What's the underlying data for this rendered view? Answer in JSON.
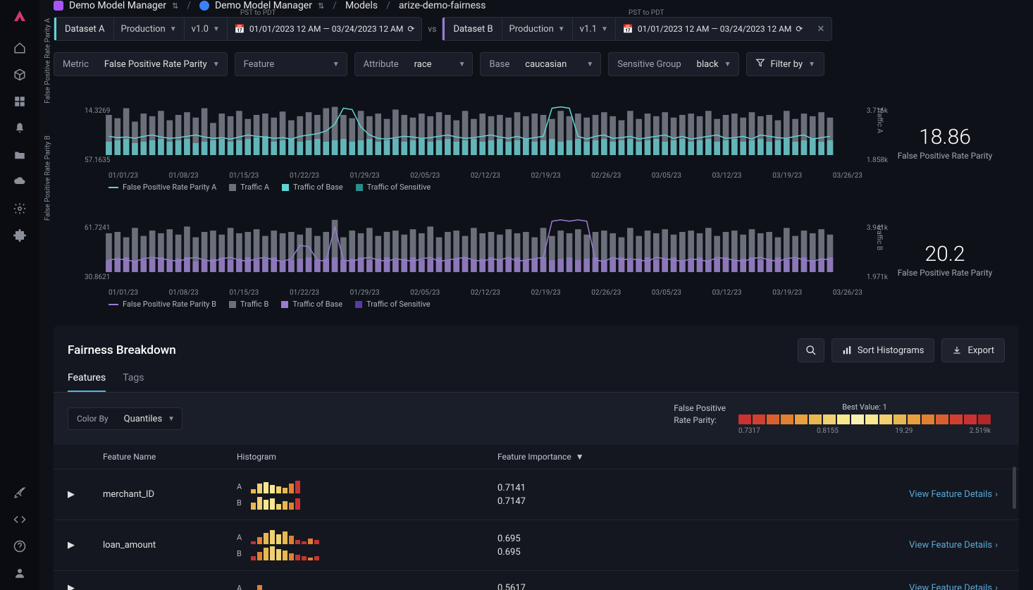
{
  "breadcrumb": {
    "org": "Demo Model Manager",
    "org_color": "#a855f7",
    "space": "Demo Model Manager",
    "space_color": "#3b82f6",
    "section": "Models",
    "model": "arize-demo-fairness"
  },
  "dataset_a": {
    "label": "Dataset A",
    "accent": "#5fd4d4",
    "env": "Production",
    "version": "v1.0",
    "tz": "PST to PDT",
    "date_range": "01/01/2023 12 AM — 03/24/2023 12 AM"
  },
  "dataset_b": {
    "label": "Dataset B",
    "accent": "#9b7bd4",
    "env": "Production",
    "version": "v1.1",
    "tz": "PST to PDT",
    "date_range": "01/01/2023 12 AM — 03/24/2023 12 AM"
  },
  "vs": "vs",
  "filters": {
    "metric_lbl": "Metric",
    "metric_val": "False Positive Rate Parity",
    "feature_lbl": "Feature",
    "feature_val": "",
    "attribute_lbl": "Attribute",
    "attribute_val": "race",
    "base_lbl": "Base",
    "base_val": "caucasian",
    "sensitive_lbl": "Sensitive Group",
    "sensitive_val": "black",
    "filterby": "Filter by"
  },
  "chart_a": {
    "y_label": "False Positive Rate Parity A",
    "y2_label": "Traffic A",
    "y_ticks": [
      "14.3269",
      "57.1635"
    ],
    "y2_ticks": [
      "3.716k",
      "1.858k"
    ],
    "x_ticks": [
      "01/01/23",
      "01/08/23",
      "01/15/23",
      "01/22/23",
      "01/29/23",
      "02/05/23",
      "02/12/23",
      "02/19/23",
      "02/26/23",
      "03/05/23",
      "03/12/23",
      "03/19/23",
      "03/26/23"
    ],
    "legend": [
      {
        "type": "line",
        "color": "#5fd4d4",
        "label": "False Positive Rate Parity A"
      },
      {
        "type": "sq",
        "color": "#6a6f7a",
        "label": "Traffic A"
      },
      {
        "type": "sq",
        "color": "#5fd4d4",
        "label": "Traffic of Base"
      },
      {
        "type": "sq",
        "color": "#2a8c8c",
        "label": "Traffic of Sensitive"
      }
    ],
    "stat_val": "18.86",
    "stat_lbl": "False Positive Rate Parity",
    "traffic": [
      60,
      55,
      70,
      50,
      62,
      58,
      66,
      52,
      60,
      64,
      56,
      70,
      48,
      62,
      58,
      66,
      54,
      60,
      62,
      56,
      65,
      52,
      58,
      64,
      60,
      70,
      72,
      60,
      55,
      66,
      58,
      62,
      54,
      68,
      60,
      56,
      62,
      58,
      64,
      60,
      52,
      66,
      54,
      62,
      58,
      60,
      56,
      64,
      58,
      62,
      60,
      54,
      66,
      58,
      62,
      56,
      60,
      64,
      58,
      52,
      66,
      54,
      62,
      58,
      64,
      56,
      60,
      62,
      58,
      66,
      54,
      60,
      62,
      56,
      64,
      58,
      60,
      52,
      66,
      54,
      62,
      58,
      64,
      56
    ],
    "base": [
      20,
      22,
      24,
      18,
      20,
      22,
      24,
      20,
      22,
      24,
      18,
      20,
      22,
      24,
      20,
      22,
      24,
      26,
      28,
      20,
      22,
      24,
      20,
      22,
      24,
      20,
      22,
      24,
      20,
      22,
      24,
      20,
      22,
      24,
      20,
      22,
      24,
      20,
      22,
      24,
      20,
      22,
      24,
      20,
      22,
      24,
      20,
      22,
      24,
      20,
      22,
      24,
      20,
      22,
      24,
      20,
      22,
      24,
      20,
      22,
      24,
      20,
      22,
      24,
      20,
      22,
      24,
      20,
      22,
      24,
      20,
      22,
      24,
      20,
      22,
      24,
      20,
      22,
      24,
      20,
      22,
      24,
      20,
      22
    ],
    "line": [
      72,
      74,
      73,
      75,
      72,
      70,
      73,
      75,
      74,
      72,
      70,
      73,
      75,
      74,
      76,
      73,
      70,
      72,
      73,
      75,
      74,
      76,
      72,
      70,
      68,
      64,
      54,
      30,
      32,
      58,
      70,
      75,
      76,
      74,
      72,
      73,
      75,
      74,
      72,
      70,
      73,
      75,
      74,
      72,
      70,
      73,
      75,
      72,
      76,
      74,
      72,
      30,
      28,
      30,
      72,
      76,
      72,
      70,
      75,
      74,
      72,
      76,
      74,
      72,
      70,
      75,
      72,
      76,
      74,
      72,
      70,
      75,
      74,
      72,
      76,
      70,
      72,
      74,
      75,
      72,
      70,
      76,
      74,
      72
    ],
    "line_color": "#5fd4d4",
    "bar_color": "#6a6f7a",
    "base_color": "#5fd4d4"
  },
  "chart_b": {
    "y_label": "False Positive Rate Parity B",
    "y2_label": "Traffic B",
    "y_ticks": [
      "61.7241",
      "30.8621"
    ],
    "y2_ticks": [
      "3.941k",
      "1.971k"
    ],
    "x_ticks": [
      "01/01/23",
      "01/08/23",
      "01/15/23",
      "01/22/23",
      "01/29/23",
      "02/05/23",
      "02/12/23",
      "02/19/23",
      "02/26/23",
      "03/05/23",
      "03/12/23",
      "03/19/23",
      "03/26/23"
    ],
    "legend": [
      {
        "type": "line",
        "color": "#9b7bd4",
        "label": "False Positive Rate Parity B"
      },
      {
        "type": "sq",
        "color": "#6a6f7a",
        "label": "Traffic B"
      },
      {
        "type": "sq",
        "color": "#9b7bd4",
        "label": "Traffic of Base"
      },
      {
        "type": "sq",
        "color": "#5a3aa4",
        "label": "Traffic of Sensitive"
      }
    ],
    "stat_val": "20.2",
    "stat_lbl": "False Positive Rate Parity",
    "traffic": [
      58,
      60,
      52,
      66,
      54,
      62,
      58,
      64,
      56,
      68,
      52,
      60,
      62,
      56,
      66,
      58,
      60,
      64,
      54,
      62,
      58,
      60,
      56,
      66,
      54,
      60,
      78,
      52,
      62,
      58,
      66,
      54,
      60,
      62,
      56,
      64,
      58,
      68,
      52,
      60,
      62,
      54,
      66,
      58,
      60,
      56,
      64,
      58,
      60,
      52,
      66,
      54,
      62,
      58,
      64,
      56,
      60,
      62,
      58,
      52,
      66,
      54,
      62,
      58,
      64,
      56,
      60,
      62,
      58,
      66,
      54,
      60,
      62,
      56,
      64,
      58,
      60,
      52,
      66,
      54,
      62,
      58,
      64,
      56
    ],
    "base": [
      18,
      20,
      22,
      16,
      18,
      20,
      22,
      18,
      20,
      22,
      16,
      18,
      20,
      22,
      18,
      20,
      22,
      18,
      20,
      22,
      16,
      18,
      20,
      22,
      18,
      20,
      22,
      18,
      20,
      22,
      18,
      20,
      22,
      18,
      20,
      22,
      18,
      20,
      22,
      18,
      20,
      22,
      18,
      20,
      22,
      18,
      20,
      22,
      18,
      20,
      22,
      18,
      20,
      22,
      18,
      20,
      22,
      18,
      20,
      22,
      18,
      20,
      22,
      18,
      20,
      22,
      18,
      20,
      22,
      18,
      20,
      22,
      18,
      20,
      22,
      18,
      20,
      22,
      18,
      20,
      22,
      18,
      20,
      22
    ],
    "line": [
      82,
      80,
      82,
      84,
      80,
      78,
      80,
      82,
      84,
      80,
      78,
      82,
      84,
      80,
      78,
      82,
      84,
      80,
      78,
      82,
      84,
      80,
      60,
      62,
      82,
      84,
      32,
      82,
      84,
      80,
      78,
      82,
      84,
      80,
      82,
      84,
      80,
      78,
      84,
      82,
      80,
      78,
      82,
      84,
      80,
      82,
      78,
      84,
      82,
      80,
      78,
      24,
      22,
      24,
      22,
      24,
      82,
      84,
      78,
      82,
      80,
      82,
      84,
      78,
      80,
      82,
      84,
      80,
      82,
      84,
      78,
      80,
      82,
      84,
      80,
      78,
      82,
      84,
      80,
      78,
      82,
      84,
      80,
      82
    ],
    "line_color": "#9b7bd4",
    "bar_color": "#6a6f7a",
    "base_color": "#9b7bd4"
  },
  "panel": {
    "title": "Fairness Breakdown",
    "sort_btn": "Sort Histograms",
    "export_btn": "Export",
    "tabs": [
      "Features",
      "Tags"
    ],
    "active_tab": 0,
    "colorby_lbl": "Color By",
    "colorby_val": "Quantiles",
    "scale_label1": "False Positive",
    "scale_label2": "Rate Parity:",
    "scale_best": "Best Value: 1",
    "scale_colors": [
      "#c83232",
      "#d04030",
      "#d86030",
      "#e08030",
      "#e8a040",
      "#e8b850",
      "#f0d070",
      "#f8e890",
      "#f8f0b0",
      "#f8e890",
      "#f0d070",
      "#e8b850",
      "#e8a040",
      "#e08030",
      "#d86030",
      "#d04030",
      "#c83232",
      "#b02828"
    ],
    "scale_ticks": [
      "0.7317",
      "0.8155",
      "19.29",
      "2.519k"
    ],
    "table_cols": [
      "Feature Name",
      "Histogram",
      "Feature Importance"
    ],
    "view_link": "View Feature Details",
    "rows": [
      {
        "name": "merchant_ID",
        "imp_a": "0.7141",
        "imp_b": "0.7147",
        "hist_a": [
          {
            "h": 6,
            "c": "#e8b850"
          },
          {
            "h": 14,
            "c": "#f0d070"
          },
          {
            "h": 16,
            "c": "#f8e890"
          },
          {
            "h": 12,
            "c": "#f8e890"
          },
          {
            "h": 10,
            "c": "#f0d070"
          },
          {
            "h": 8,
            "c": "#e8b850"
          },
          {
            "h": 14,
            "c": "#e08030"
          },
          {
            "h": 18,
            "c": "#c83232"
          }
        ],
        "hist_b": [
          {
            "h": 10,
            "c": "#e8b850"
          },
          {
            "h": 18,
            "c": "#f0d070"
          },
          {
            "h": 14,
            "c": "#f8e890"
          },
          {
            "h": 16,
            "c": "#f8e890"
          },
          {
            "h": 8,
            "c": "#f0d070"
          },
          {
            "h": 12,
            "c": "#e8b850"
          },
          {
            "h": 10,
            "c": "#e08030"
          },
          {
            "h": 16,
            "c": "#c83232"
          }
        ]
      },
      {
        "name": "loan_amount",
        "imp_a": "0.695",
        "imp_b": "0.695",
        "hist_a": [
          {
            "h": 4,
            "c": "#c83232"
          },
          {
            "h": 10,
            "c": "#e08030"
          },
          {
            "h": 16,
            "c": "#e8b850"
          },
          {
            "h": 20,
            "c": "#f0d070"
          },
          {
            "h": 14,
            "c": "#f0d070"
          },
          {
            "h": 18,
            "c": "#e8b850"
          },
          {
            "h": 12,
            "c": "#e08030"
          },
          {
            "h": 6,
            "c": "#c83232"
          },
          {
            "h": 4,
            "c": "#c83232"
          },
          {
            "h": 8,
            "c": "#e08030"
          },
          {
            "h": 6,
            "c": "#c83232"
          }
        ],
        "hist_b": [
          {
            "h": 6,
            "c": "#c83232"
          },
          {
            "h": 12,
            "c": "#e08030"
          },
          {
            "h": 18,
            "c": "#e8b850"
          },
          {
            "h": 20,
            "c": "#f0d070"
          },
          {
            "h": 16,
            "c": "#f0d070"
          },
          {
            "h": 14,
            "c": "#e8b850"
          },
          {
            "h": 10,
            "c": "#e08030"
          },
          {
            "h": 8,
            "c": "#c83232"
          },
          {
            "h": 6,
            "c": "#c83232"
          },
          {
            "h": 4,
            "c": "#e08030"
          },
          {
            "h": 6,
            "c": "#c83232"
          }
        ]
      },
      {
        "name": "",
        "imp_a": "0.5617",
        "imp_b": "",
        "hist_a": [
          {
            "h": 6,
            "c": "#e8b850"
          },
          {
            "h": 14,
            "c": "#e08030"
          }
        ],
        "hist_b": []
      }
    ]
  }
}
